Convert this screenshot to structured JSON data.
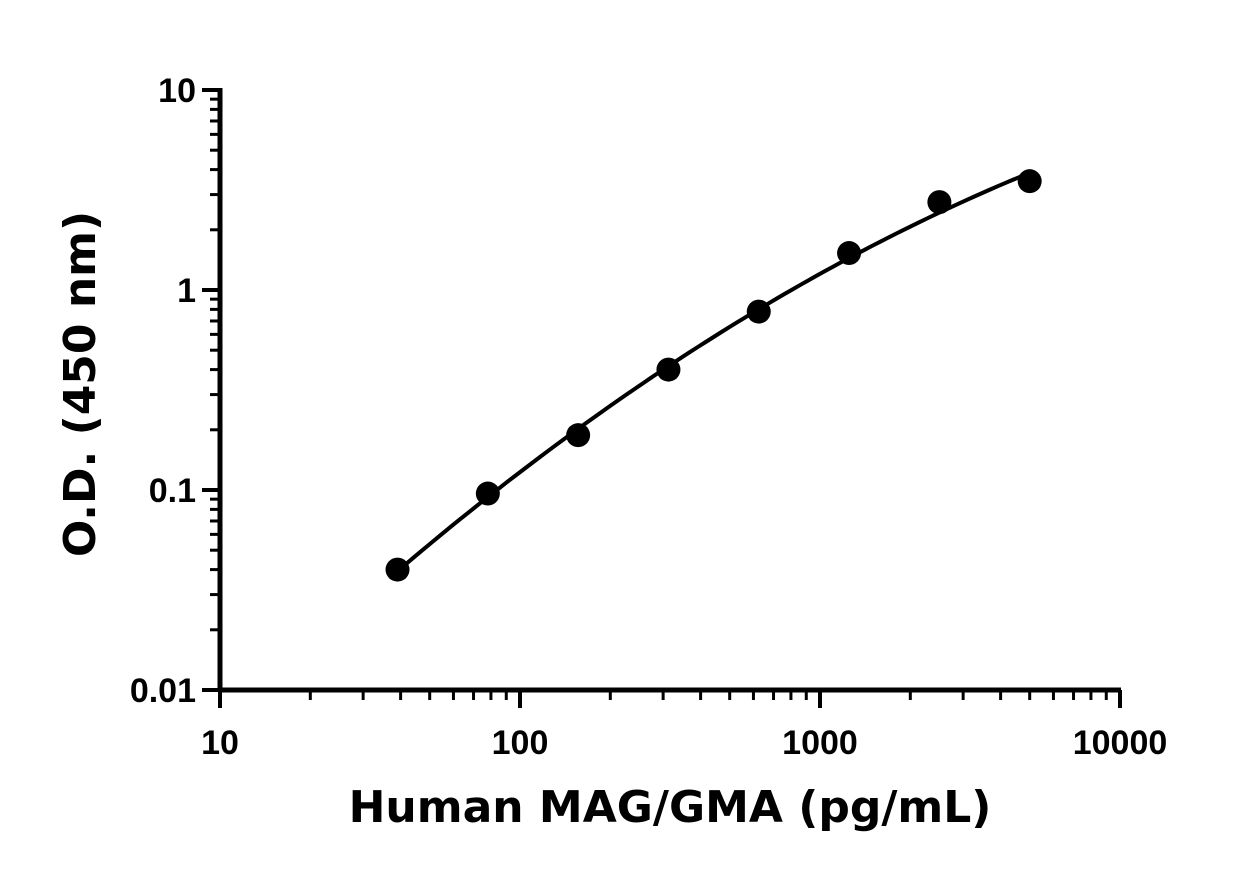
{
  "chart_data": {
    "type": "scatter",
    "title": "",
    "xlabel": "Human MAG/GMA (pg/mL)",
    "ylabel": "O.D. (450 nm)",
    "xscale": "log",
    "yscale": "log",
    "xlim": [
      10,
      10000
    ],
    "ylim": [
      0.01,
      10
    ],
    "x_ticks": [
      "10",
      "100",
      "1000",
      "10000"
    ],
    "y_ticks": [
      "0.01",
      "0.1",
      "1",
      "10"
    ],
    "grid": false,
    "legend": "none",
    "marker_color": "#000000",
    "line_color": "#000000",
    "series": [
      {
        "x": [
          39.06,
          78.13,
          156.25,
          312.5,
          625,
          1250,
          2500,
          5000
        ],
        "y": [
          0.04,
          0.096,
          0.188,
          0.4,
          0.78,
          1.53,
          2.75,
          3.5
        ]
      }
    ],
    "fit_curve": true
  }
}
